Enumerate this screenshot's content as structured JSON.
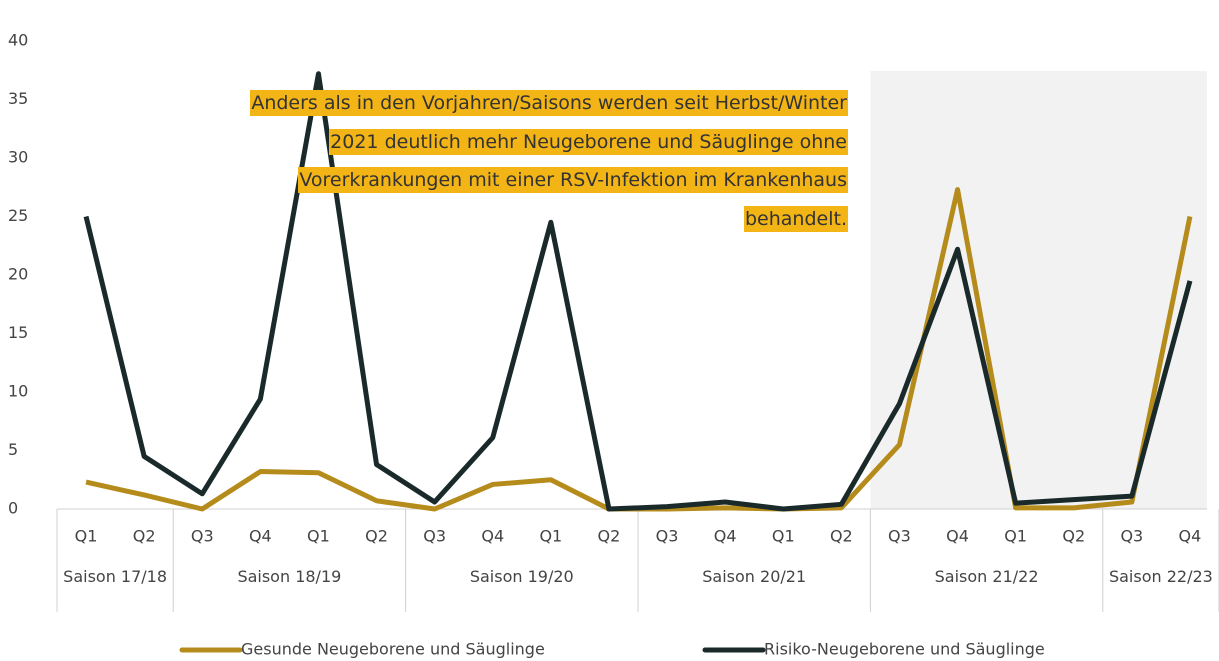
{
  "chart_data": {
    "type": "line",
    "categories": [
      "Q1",
      "Q2",
      "Q3",
      "Q4",
      "Q1",
      "Q2",
      "Q3",
      "Q4",
      "Q1",
      "Q2",
      "Q3",
      "Q4",
      "Q1",
      "Q2",
      "Q3",
      "Q4",
      "Q1",
      "Q2",
      "Q3",
      "Q4"
    ],
    "groups": [
      {
        "label": "Saison 17/18",
        "count": 2
      },
      {
        "label": "Saison 18/19",
        "count": 4
      },
      {
        "label": "Saison 19/20",
        "count": 4
      },
      {
        "label": "Saison 20/21",
        "count": 4
      },
      {
        "label": "Saison 21/22",
        "count": 4
      },
      {
        "label": "Saison 22/23",
        "count": 2
      }
    ],
    "series": [
      {
        "name": "Gesunde Neugeborene und Säuglinge",
        "color": "#b58c1c",
        "values": [
          2.3,
          1.2,
          0,
          3.2,
          3.1,
          0.7,
          0,
          2.1,
          2.5,
          0,
          0,
          0.1,
          0,
          0.1,
          5.5,
          27.3,
          0.1,
          0.1,
          0.6,
          25
        ]
      },
      {
        "name": "Risiko-Neugeborene und Säuglinge",
        "color": "#1a2a2a",
        "values": [
          25,
          4.5,
          1.3,
          9.4,
          37.2,
          3.8,
          0.6,
          6.1,
          24.5,
          0,
          0.2,
          0.6,
          0,
          0.4,
          9,
          22.2,
          0.5,
          0.8,
          1.1,
          19.5
        ]
      }
    ],
    "annotation": "Anders als in den Vorjahren/Saisons werden seit Herbst/Winter 2021 deutlich mehr Neugeborene und Säuglinge ohne Vorerkrankungen mit einer RSV-Infektion im Krankenhaus behandelt.",
    "highlight_from": 14,
    "highlight_color": "#f2f2f2",
    "ylim": [
      0,
      40
    ],
    "yticks": [
      0,
      5,
      10,
      15,
      20,
      25,
      30,
      35,
      40
    ]
  }
}
